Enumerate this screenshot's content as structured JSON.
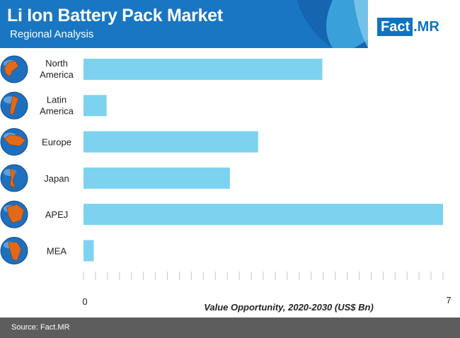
{
  "header": {
    "title": "Li Ion Battery Pack Market",
    "subtitle": "Regional Analysis",
    "brand_color": "#1976c2"
  },
  "logo": {
    "part1": "Fact",
    "part2": ".MR"
  },
  "footer": {
    "source": "Source: Fact.MR"
  },
  "chart_data": {
    "type": "bar",
    "orientation": "horizontal",
    "categories": [
      "North America",
      "Latin America",
      "Europe",
      "Japan",
      "APEJ",
      "MEA"
    ],
    "category_lines": [
      [
        "North",
        "America"
      ],
      [
        "Latin",
        "America"
      ],
      [
        "Europe"
      ],
      [
        "Japan"
      ],
      [
        "APEJ"
      ],
      [
        "MEA"
      ]
    ],
    "icons": [
      "globe-north-america-icon",
      "globe-latin-america-icon",
      "globe-europe-icon",
      "globe-japan-icon",
      "globe-apej-icon",
      "globe-mea-icon"
    ],
    "values": [
      4.65,
      0.45,
      3.4,
      2.85,
      7.0,
      0.2
    ],
    "xlim": [
      0,
      7
    ],
    "tick_labels": [
      "0",
      "7"
    ],
    "xlabel": "Value Opportunity, 2020-2030 (US$ Bn)",
    "bar_color": "#7dd3ef",
    "grid": false
  }
}
